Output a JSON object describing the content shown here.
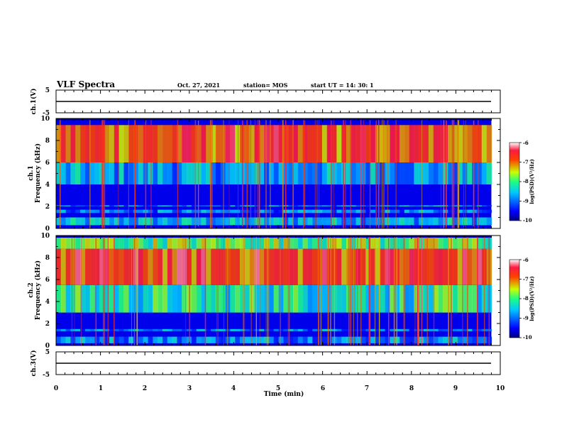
{
  "header": {
    "title": "VLF Spectra",
    "date": "Oct. 27, 2021",
    "station": "station= MOS",
    "start": "start UT = 14: 30: 1"
  },
  "chart_data": [
    {
      "type": "line",
      "panel": "ch1-waveform",
      "ylabel": "ch.1(V)",
      "ylim": [
        -5,
        5
      ],
      "yticks": [
        "5",
        "-5"
      ],
      "xlim": [
        0,
        10
      ],
      "series": [
        {
          "x": [
            0,
            9.8
          ],
          "y": [
            0,
            0
          ]
        }
      ]
    },
    {
      "type": "heatmap",
      "panel": "ch1-spectrogram",
      "ylabel": "ch.1\nFrequency (kHz)",
      "ylabel_line1": "ch.1",
      "ylabel_line2": "Frequency (kHz)",
      "ylim": [
        0,
        10
      ],
      "yticks": [
        "0",
        "2",
        "4",
        "6",
        "8",
        "10"
      ],
      "xlim": [
        0,
        10
      ],
      "data_xmax": 9.8,
      "colorbar": {
        "label": "log(PSD)(V²/Hz)",
        "range": [
          -10,
          -6
        ],
        "ticks": [
          "-6",
          "-7",
          "-8",
          "-9",
          "-10"
        ]
      },
      "bands": [
        {
          "f_min": 0.3,
          "f_max": 1.0,
          "level": -8.6
        },
        {
          "f_min": 4.0,
          "f_max": 6.0,
          "level": -8.7
        },
        {
          "f_min": 6.0,
          "f_max": 9.4,
          "level": -6.9
        },
        {
          "f_min": 1.4,
          "f_max": 1.7,
          "level": -8.9
        },
        {
          "f_min": 2.0,
          "f_max": 2.1,
          "level": -8.8
        }
      ]
    },
    {
      "type": "heatmap",
      "panel": "ch2-spectrogram",
      "ylabel_line1": "ch.2",
      "ylabel_line2": "Frequency (kHz)",
      "ylim": [
        0,
        10
      ],
      "yticks": [
        "0",
        "2",
        "4",
        "6",
        "8",
        "10"
      ],
      "xlim": [
        0,
        10
      ],
      "data_xmax": 9.8,
      "colorbar": {
        "label": "log(PSD)(V²/Hz)",
        "range": [
          -10,
          -6
        ],
        "ticks": [
          "-6",
          "-7",
          "-8",
          "-9",
          "-10"
        ]
      },
      "bands": [
        {
          "f_min": 0.2,
          "f_max": 0.8,
          "level": -8.8
        },
        {
          "f_min": 3.0,
          "f_max": 5.5,
          "level": -8.2
        },
        {
          "f_min": 5.5,
          "f_max": 8.8,
          "level": -6.8
        },
        {
          "f_min": 8.8,
          "f_max": 9.8,
          "level": -7.8
        },
        {
          "f_min": 1.3,
          "f_max": 1.5,
          "level": -8.9
        }
      ]
    },
    {
      "type": "line",
      "panel": "ch3-waveform",
      "ylabel": "ch.3(V)",
      "ylim": [
        -5,
        5
      ],
      "yticks": [
        "5",
        "-5"
      ],
      "xlim": [
        0,
        10
      ],
      "xlabel": "Time (min)",
      "xticks": [
        "0",
        "1",
        "2",
        "3",
        "4",
        "5",
        "6",
        "7",
        "8",
        "9",
        "10"
      ],
      "series": [
        {
          "x": [
            0,
            9.8
          ],
          "y": [
            0,
            0
          ]
        }
      ]
    }
  ]
}
